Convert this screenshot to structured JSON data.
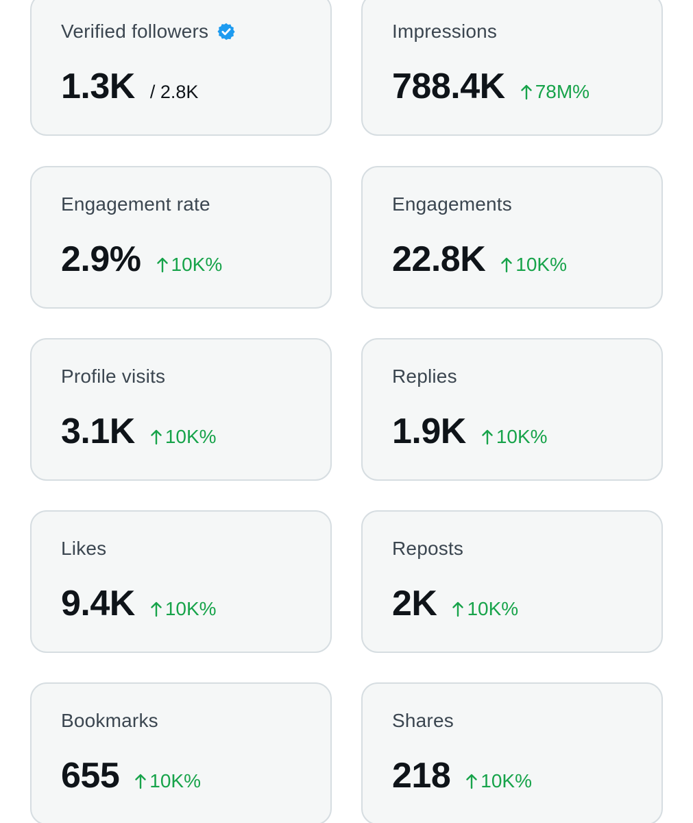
{
  "colors": {
    "card_background": "#f5f7f7",
    "card_border": "#d6dde1",
    "label_text": "#3b4650",
    "value_text": "#0f1419",
    "positive_change": "#17a34a",
    "verified_badge": "#1d9bf0"
  },
  "cards": [
    {
      "label": "Verified followers",
      "value": "1.3K",
      "total": "/ 2.8K",
      "change": "",
      "icon": "verified-badge-icon"
    },
    {
      "label": "Impressions",
      "value": "788.4K",
      "change": "78M%",
      "icon": "arrow-up-icon"
    },
    {
      "label": "Engagement rate",
      "value": "2.9%",
      "change": "10K%",
      "icon": "arrow-up-icon"
    },
    {
      "label": "Engagements",
      "value": "22.8K",
      "change": "10K%",
      "icon": "arrow-up-icon"
    },
    {
      "label": "Profile visits",
      "value": "3.1K",
      "change": "10K%",
      "icon": "arrow-up-icon"
    },
    {
      "label": "Replies",
      "value": "1.9K",
      "change": "10K%",
      "icon": "arrow-up-icon"
    },
    {
      "label": "Likes",
      "value": "9.4K",
      "change": "10K%",
      "icon": "arrow-up-icon"
    },
    {
      "label": "Reposts",
      "value": "2K",
      "change": "10K%",
      "icon": "arrow-up-icon"
    },
    {
      "label": "Bookmarks",
      "value": "655",
      "change": "10K%",
      "icon": "arrow-up-icon"
    },
    {
      "label": "Shares",
      "value": "218",
      "change": "10K%",
      "icon": "arrow-up-icon"
    }
  ]
}
